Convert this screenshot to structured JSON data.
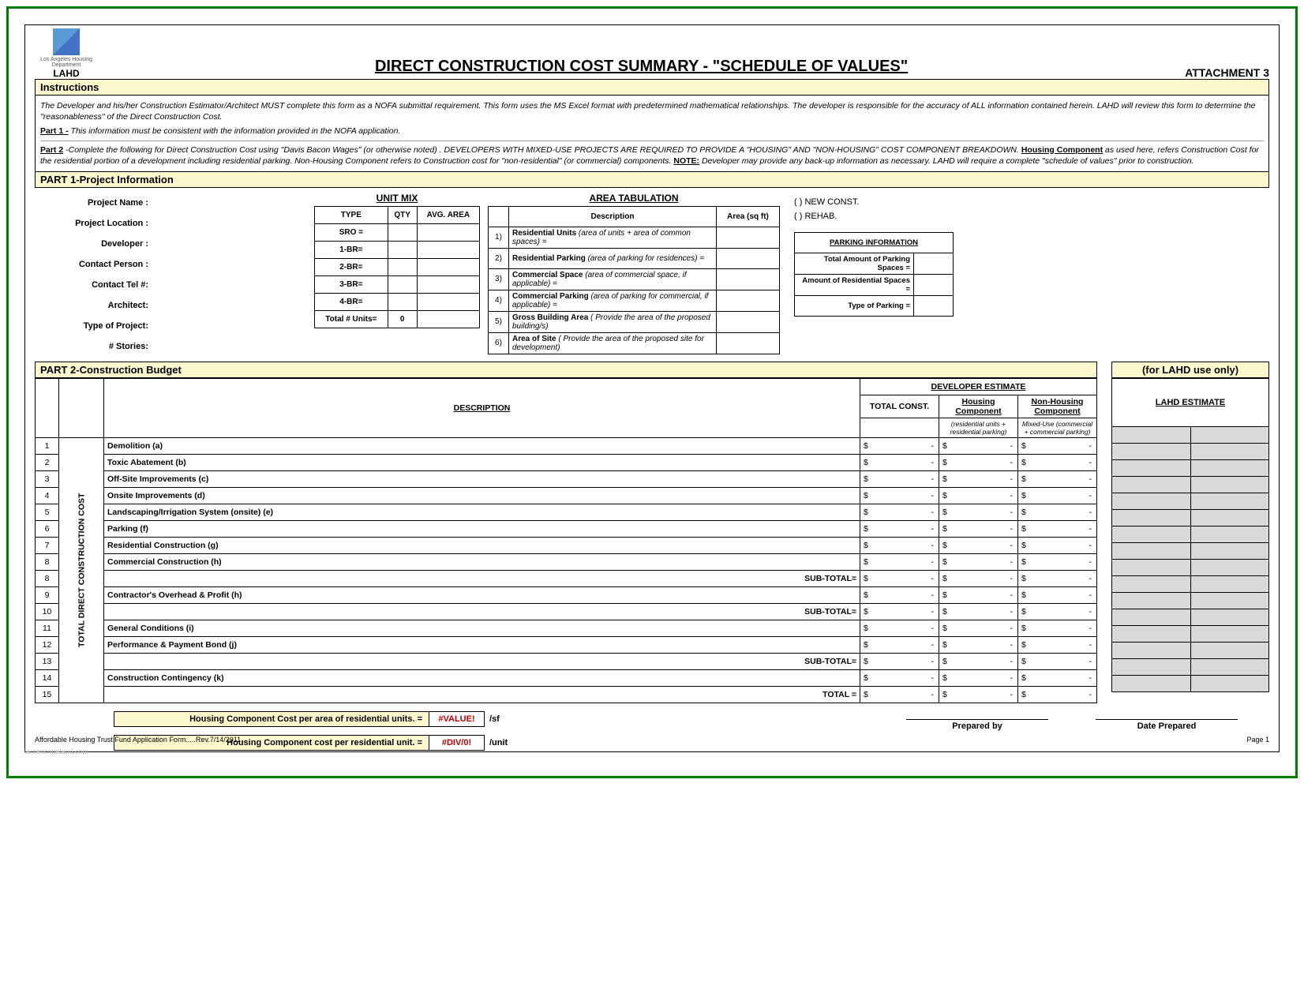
{
  "colors": {
    "outer_border": "#008000",
    "band_bg": "#fdf9cc",
    "lahd_grey": "#d9d9d9",
    "error_red": "#c00000"
  },
  "header": {
    "logo_label": "LAHD",
    "logo_subtitle": "Los Angeles Housing Department",
    "title": "DIRECT CONSTRUCTION COST SUMMARY - \"SCHEDULE OF VALUES\"",
    "attachment": "ATTACHMENT 3"
  },
  "instructions": {
    "heading": "Instructions",
    "intro": "The Developer and his/her Construction Estimator/Architect MUST complete this form as a NOFA submittal requirement. This form uses the MS Excel format with predetermined mathematical relationships.  The developer is responsible for the accuracy of ALL information contained herein.  LAHD will review this form to determine the \"reasonableness\" of the Direct Construction Cost.",
    "part1": "Part 1 - This information must be consistent with the information provided in the NOFA application.",
    "part2": "Part 2 -Complete the following for Direct Construction Cost using \"Davis Bacon Wages\" (or otherwise noted) . DEVELOPERS WITH MIXED-USE PROJECTS ARE REQUIRED TO PROVIDE A \"HOUSING\" AND \"NON-HOUSING\" COST COMPONENT BREAKDOWN.  Housing Component as used here, refers Construction Cost for the residential portion of a development including residential parking. Non-Housing Component refers to Construction cost for \"non-residential\" (or commercial) components. NOTE: Developer may provide any back-up information as necessary.  LAHD will require a complete \"schedule of values\" prior to construction."
  },
  "part1": {
    "heading": "PART 1-Project Information",
    "labels": [
      "Project Name :",
      "Project Location :",
      "Developer :",
      "Contact Person :",
      "Contact Tel #:",
      "Architect:",
      "Type of Project:",
      "# Stories:"
    ],
    "unit_mix": {
      "title": "UNIT MIX",
      "cols": [
        "TYPE",
        "QTY",
        "AVG. AREA"
      ],
      "rows": [
        "SRO =",
        "1-BR=",
        "2-BR=",
        "3-BR=",
        "4-BR="
      ],
      "total_label": "Total # Units=",
      "total_value": "0"
    },
    "area_tab": {
      "title": "AREA TABULATION",
      "col_desc": "Description",
      "col_area": "Area (sq ft)",
      "items": [
        {
          "n": "1)",
          "b": "Residential Units",
          "i": "(area of units + area of common spaces) ="
        },
        {
          "n": "2)",
          "b": "Residential Parking",
          "i": "(area of parking for residences) ="
        },
        {
          "n": "3)",
          "b": "Commercial Space",
          "i": "(area of commercial space, if applicable) ="
        },
        {
          "n": "4)",
          "b": "Commercial Parking",
          "i": "(area of parking for commercial, if applicable) ="
        },
        {
          "n": "5)",
          "b": "Gross Building Area",
          "i": "( Provide the area of the proposed building/s)"
        },
        {
          "n": "6)",
          "b": "Area of Site",
          "i": "( Provide the area of the proposed site for development)"
        }
      ]
    },
    "options": {
      "new": "(     )  NEW CONST.",
      "rehab": "(     )  REHAB."
    },
    "parking": {
      "title": "PARKING INFORMATION",
      "rows": [
        "Total Amount of Parking Spaces =",
        "Amount of Residential Spaces =",
        "Type of Parking ="
      ]
    }
  },
  "part2": {
    "heading": "PART 2-Construction Budget",
    "lahd_heading": "(for LAHD use only)",
    "cols": {
      "desc": "DESCRIPTION",
      "dev_est": "DEVELOPER ESTIMATE",
      "total": "TOTAL CONST.",
      "housing": "Housing Component",
      "housing_sub": "(residential units + residential parking)",
      "nonhousing": "Non-Housing Component",
      "nonhousing_sub": "Mixed-Use (commercial + commercial parking)",
      "lahd_est": "LAHD ESTIMATE"
    },
    "rows": [
      {
        "n": "1",
        "d": "Demolition (a)"
      },
      {
        "n": "2",
        "d": "Toxic Abatement (b)"
      },
      {
        "n": "3",
        "d": "Off-Site Improvements (c)"
      },
      {
        "n": "4",
        "d": "Onsite Improvements (d)"
      },
      {
        "n": "5",
        "d": "Landscaping/Irrigation System (onsite) (e)"
      },
      {
        "n": "6",
        "d": "Parking (f)"
      },
      {
        "n": "7",
        "d": "Residential Construction (g)"
      },
      {
        "n": "8",
        "d": "Commercial Construction (h)"
      },
      {
        "n": "8",
        "sub": "SUB-TOTAL="
      },
      {
        "n": "9",
        "d": "Contractor's Overhead & Profit (h)"
      },
      {
        "n": "10",
        "sub": "SUB-TOTAL="
      },
      {
        "n": "11",
        "d": "General Conditions (i)"
      },
      {
        "n": "12",
        "d": "Performance & Payment Bond (j)"
      },
      {
        "n": "13",
        "sub": "SUB-TOTAL="
      },
      {
        "n": "14",
        "d": "Construction Contingency (k)"
      },
      {
        "n": "15",
        "sub": "TOTAL ="
      }
    ]
  },
  "footer_calcs": [
    {
      "label": "Housing Component Cost per area of residential units. =",
      "val": "#VALUE!",
      "unit": "/sf"
    },
    {
      "label": "Housing Component cost per residential unit. =",
      "val": "#DIV/0!",
      "unit": "/unit"
    }
  ],
  "signatures": {
    "prep_by": "Prepared by",
    "date_prep": "Date Prepared"
  },
  "footer": {
    "left": "Affordable Housing Trust Fund Application Form.....Rev.7/14/2011",
    "right": "Page 1",
    "watermark": "laurencopeland.com"
  }
}
